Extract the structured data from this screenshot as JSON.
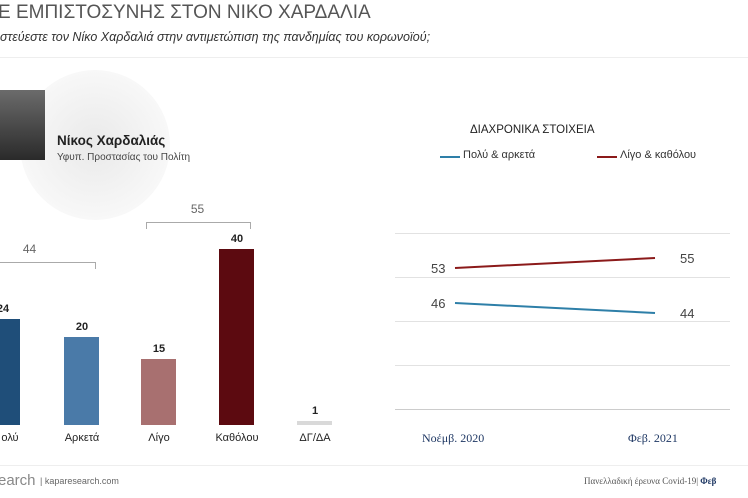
{
  "header": {
    "title": "Ε ΕΜΠΙΣΤΟΣΥΝΗΣ ΣΤΟΝ ΝΙΚΟ ΧΑΡΔΑΛΙΑ",
    "subtitle": "στεύεστε τον Νίκο Χαρδαλιά στην αντιμετώπιση της πανδημίας του κορωνοϊού;"
  },
  "person": {
    "name": "Νίκος Χαρδαλιάς",
    "role": "Υφυπ. Προστασίας του Πολίτη"
  },
  "chart_data": [
    {
      "type": "bar",
      "categories": [
        "Πολύ",
        "Αρκετά",
        "Λίγο",
        "Καθόλου",
        "ΔΓ/ΔΑ"
      ],
      "category_labels_visible": [
        "ολύ",
        "Αρκετά",
        "Λίγο",
        "Καθόλου",
        "ΔΓ/ΔΑ"
      ],
      "values": [
        24,
        20,
        15,
        40,
        1
      ],
      "colors": [
        "#1f4e79",
        "#4a7aa8",
        "#a87070",
        "#5c0a10",
        "#d9d9d9"
      ],
      "groups": [
        {
          "label": "44",
          "members": [
            0,
            1
          ]
        },
        {
          "label": "55",
          "members": [
            2,
            3
          ]
        }
      ]
    },
    {
      "type": "line",
      "title": "ΔΙΑΧΡΟΝΙΚΑ ΣΤΟΙΧΕΙΑ",
      "x": [
        "Νοέμβ. 2020",
        "Φεβ. 2021"
      ],
      "series": [
        {
          "name": "Πολύ & αρκετά",
          "values": [
            46,
            44
          ],
          "color": "#2e7fa8"
        },
        {
          "name": "Λίγο & καθόλου",
          "values": [
            53,
            55
          ],
          "color": "#8b1a1a"
        }
      ],
      "legend": "top",
      "grid": true
    }
  ],
  "footer": {
    "logo": "earch",
    "site": "kaparesearch.com",
    "note": "Πανελλαδική έρευνα Covid-19|",
    "note_bold": "Φεβ"
  }
}
